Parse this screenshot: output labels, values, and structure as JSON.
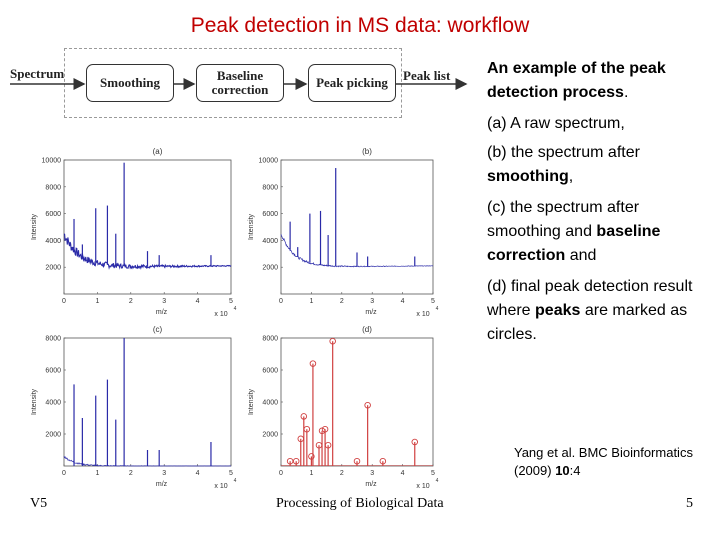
{
  "title": "Peak detection in MS data: workflow",
  "workflow": {
    "input": "Spectrum",
    "steps": [
      "Smoothing",
      "Baseline correction",
      "Peak picking"
    ],
    "output": "Peak list"
  },
  "description": {
    "intro_bold": "An example of the peak detection process",
    "intro_end": ".",
    "a": "(a) A raw spectrum,",
    "b_pre": "(b) the spectrum after",
    "b_bold": "smoothing",
    "b_end": ",",
    "c_pre": "(c) the spectrum after smoothing and",
    "c_bold": "baseline correction",
    "c_end": "and",
    "d_pre": "(d) final peak detection result where",
    "d_bold": "peaks",
    "d_end": "are marked as circles."
  },
  "citation": {
    "text": "Yang et al. BMC Bioinformatics (2009)",
    "volume": "10",
    "page": ":4"
  },
  "footer": {
    "left": "V5",
    "center": "Processing of Biological Data",
    "right": "5"
  },
  "colors": {
    "title": "#c00000",
    "spectrum": "#2a2aa8",
    "peaks": "#d04040"
  },
  "chart_data": [
    {
      "type": "line",
      "panel": "(a)",
      "xlabel": "m/z",
      "ylabel": "Intensity",
      "x_exponent": "x 10",
      "x_exp_power": "4",
      "xlim": [
        0,
        5
      ],
      "ylim": [
        0,
        10000
      ],
      "xticks": [
        "0",
        "1",
        "2",
        "3",
        "4",
        "5"
      ],
      "yticks": [
        "2000",
        "4000",
        "6000",
        "8000",
        "10000"
      ],
      "baseline_start": 2000,
      "baseline_end": 2100,
      "noise": 400,
      "peaks": [
        [
          0.3,
          5600
        ],
        [
          0.55,
          3700
        ],
        [
          0.95,
          6400
        ],
        [
          1.3,
          6600
        ],
        [
          1.55,
          4500
        ],
        [
          1.8,
          9800
        ],
        [
          2.5,
          3200
        ],
        [
          2.85,
          2900
        ],
        [
          4.4,
          2900
        ]
      ]
    },
    {
      "type": "line",
      "panel": "(b)",
      "xlabel": "m/z",
      "ylabel": "Intensity",
      "x_exponent": "x 10",
      "x_exp_power": "4",
      "xlim": [
        0,
        5
      ],
      "ylim": [
        0,
        10000
      ],
      "xticks": [
        "0",
        "1",
        "2",
        "3",
        "4",
        "5"
      ],
      "yticks": [
        "2000",
        "4000",
        "6000",
        "8000",
        "10000"
      ],
      "baseline_start": 2000,
      "baseline_end": 2100,
      "noise": 120,
      "peaks": [
        [
          0.3,
          5400
        ],
        [
          0.55,
          3500
        ],
        [
          0.95,
          6000
        ],
        [
          1.3,
          6200
        ],
        [
          1.55,
          4400
        ],
        [
          1.8,
          9400
        ],
        [
          2.5,
          3100
        ],
        [
          2.85,
          2800
        ],
        [
          4.4,
          2800
        ]
      ]
    },
    {
      "type": "line",
      "panel": "(c)",
      "xlabel": "m/z",
      "ylabel": "Intensity",
      "x_exponent": "x 10",
      "x_exp_power": "4",
      "xlim": [
        0,
        5
      ],
      "ylim": [
        0,
        8000
      ],
      "xticks": [
        "0",
        "1",
        "2",
        "3",
        "4",
        "5"
      ],
      "yticks": [
        "2000",
        "4000",
        "6000",
        "8000"
      ],
      "baseline_start": 0,
      "baseline_end": 0,
      "noise": 60,
      "peaks": [
        [
          0.3,
          5100
        ],
        [
          0.55,
          3000
        ],
        [
          0.95,
          4400
        ],
        [
          1.3,
          5400
        ],
        [
          1.55,
          2900
        ],
        [
          1.8,
          8000
        ],
        [
          2.5,
          1000
        ],
        [
          2.85,
          1000
        ],
        [
          4.4,
          1500
        ]
      ]
    },
    {
      "type": "line",
      "panel": "(d)",
      "xlabel": "m/z",
      "ylabel": "Intensity",
      "x_exponent": "x 10",
      "x_exp_power": "4",
      "xlim": [
        0,
        5
      ],
      "ylim": [
        0,
        8000
      ],
      "xticks": [
        "0",
        "1",
        "2",
        "3",
        "4",
        "5"
      ],
      "yticks": [
        "2000",
        "4000",
        "6000",
        "8000"
      ],
      "baseline_start": 0,
      "baseline_end": 0,
      "noise": 0,
      "peaks": [
        [
          0.3,
          300
        ],
        [
          0.5,
          300
        ],
        [
          0.65,
          1700
        ],
        [
          0.75,
          3100
        ],
        [
          0.85,
          2300
        ],
        [
          1.0,
          600
        ],
        [
          1.05,
          6400
        ],
        [
          1.25,
          1300
        ],
        [
          1.35,
          2200
        ],
        [
          1.45,
          2300
        ],
        [
          1.55,
          1300
        ],
        [
          1.7,
          7800
        ],
        [
          2.5,
          300
        ],
        [
          2.85,
          3800
        ],
        [
          3.35,
          300
        ],
        [
          4.4,
          1500
        ]
      ],
      "circles": [
        [
          0.3,
          300
        ],
        [
          0.5,
          300
        ],
        [
          0.65,
          1700
        ],
        [
          0.75,
          3100
        ],
        [
          0.85,
          2300
        ],
        [
          1.0,
          600
        ],
        [
          1.05,
          6400
        ],
        [
          1.25,
          1300
        ],
        [
          1.35,
          2200
        ],
        [
          1.45,
          2300
        ],
        [
          1.55,
          1300
        ],
        [
          1.7,
          7800
        ],
        [
          2.5,
          300
        ],
        [
          2.85,
          3800
        ],
        [
          3.35,
          300
        ],
        [
          4.4,
          1500
        ]
      ]
    }
  ]
}
